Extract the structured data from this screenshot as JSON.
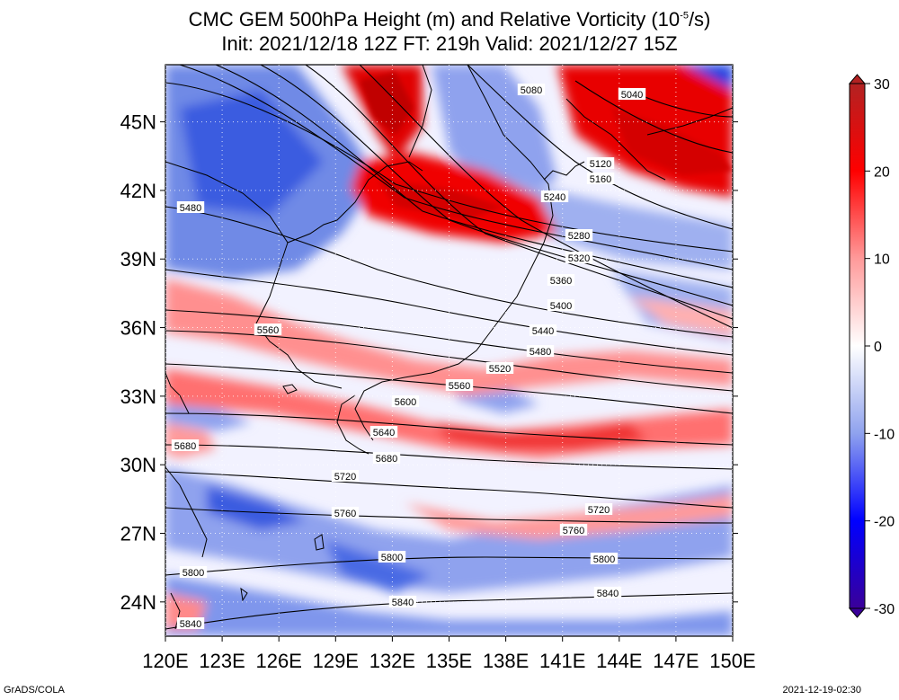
{
  "title": {
    "line1_prefix": "CMC GEM 500hPa Height (m) and Relative Vorticity (10",
    "line1_sup": "-5",
    "line1_suffix": "/s)",
    "line2": "Init: 2021/12/18 12Z  FT: 219h  Valid: 2021/12/27 15Z"
  },
  "map": {
    "lat_labels": [
      "45N",
      "42N",
      "39N",
      "36N",
      "33N",
      "30N",
      "27N",
      "24N"
    ],
    "lat_values": [
      45,
      42,
      39,
      36,
      33,
      30,
      27,
      24
    ],
    "lon_labels": [
      "120E",
      "123E",
      "126E",
      "129E",
      "132E",
      "135E",
      "138E",
      "141E",
      "144E",
      "147E",
      "150E"
    ],
    "lon_values": [
      120,
      123,
      126,
      129,
      132,
      135,
      138,
      141,
      144,
      147,
      150
    ],
    "lat_range": [
      22.5,
      47.5
    ],
    "lon_range": [
      120,
      150
    ],
    "contour_labels": [
      "5040",
      "5080",
      "5120",
      "5160",
      "5240",
      "5280",
      "5320",
      "5360",
      "5400",
      "5440",
      "5480",
      "5520",
      "5560",
      "5600",
      "5640",
      "5680",
      "5720",
      "5760",
      "5800",
      "5840"
    ],
    "vorticity_colors": {
      "strong_positive": "#e00000",
      "positive": "#ff9a9a",
      "neutral": "#f4f4ff",
      "negative": "#8fa2ee",
      "strong_negative": "#1f3fe0"
    }
  },
  "colorbar": {
    "ticks": [
      "30",
      "20",
      "10",
      "0",
      "-10",
      "-20",
      "-30"
    ],
    "tick_values": [
      30,
      20,
      10,
      0,
      -10,
      -20,
      -30
    ],
    "range": [
      -30,
      30
    ],
    "colors": [
      "#3a0099",
      "#0000ff",
      "#8fa2ee",
      "#ffffff",
      "#ff9a9a",
      "#ff0000",
      "#b22222"
    ]
  },
  "footer": {
    "left": "GrADS/COLA",
    "right": "2021-12-19-02:30"
  }
}
